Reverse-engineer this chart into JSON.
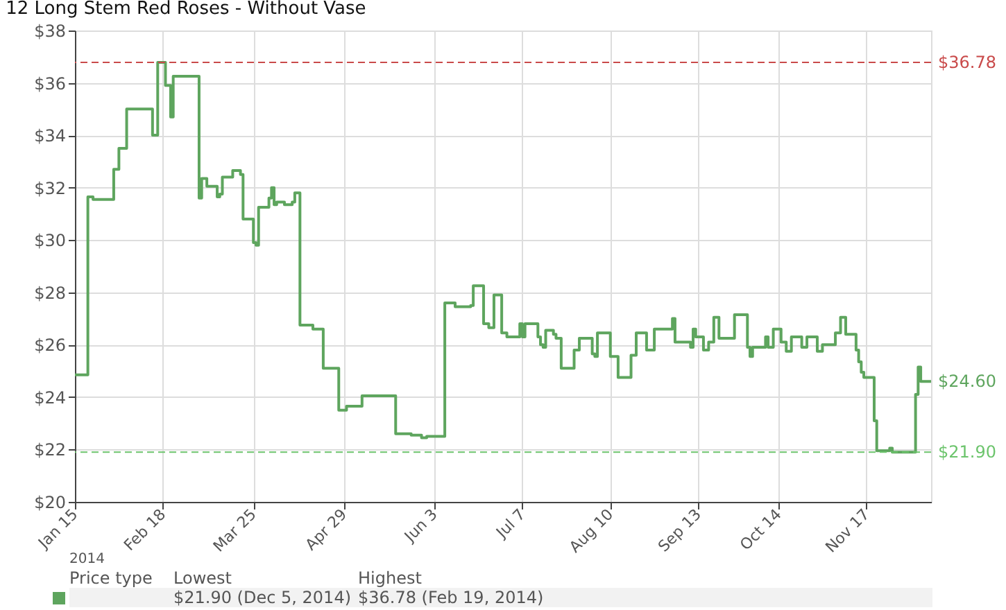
{
  "chart_data": {
    "type": "step",
    "title": "12 Long Stem Red Roses - Without Vase",
    "x": [
      "2014-01-15",
      "2014-01-20",
      "2014-01-22",
      "2014-01-30",
      "2014-02-01",
      "2014-02-04",
      "2014-02-14",
      "2014-02-16",
      "2014-02-19",
      "2014-02-21",
      "2014-02-22",
      "2014-03-04",
      "2014-03-05",
      "2014-03-07",
      "2014-03-11",
      "2014-03-12",
      "2014-03-13",
      "2014-03-17",
      "2014-03-20",
      "2014-03-21",
      "2014-03-25",
      "2014-03-26",
      "2014-03-27",
      "2014-03-31",
      "2014-04-01",
      "2014-04-02",
      "2014-04-03",
      "2014-04-06",
      "2014-04-09",
      "2014-04-10",
      "2014-04-12",
      "2014-04-17",
      "2014-04-21",
      "2014-04-27",
      "2014-04-30",
      "2014-05-06",
      "2014-05-19",
      "2014-05-25",
      "2014-05-29",
      "2014-05-31",
      "2014-06-07",
      "2014-06-11",
      "2014-06-17",
      "2014-06-18",
      "2014-06-22",
      "2014-06-24",
      "2014-06-26",
      "2014-06-29",
      "2014-07-01",
      "2014-07-06",
      "2014-07-07",
      "2014-07-08",
      "2014-07-13",
      "2014-07-14",
      "2014-07-15",
      "2014-07-16",
      "2014-07-19",
      "2014-07-20",
      "2014-07-22",
      "2014-07-27",
      "2014-07-29",
      "2014-08-03",
      "2014-08-04",
      "2014-08-05",
      "2014-08-10",
      "2014-08-13",
      "2014-08-18",
      "2014-08-20",
      "2014-08-24",
      "2014-08-27",
      "2014-09-03",
      "2014-09-04",
      "2014-09-10",
      "2014-09-11",
      "2014-09-12",
      "2014-09-15",
      "2014-09-17",
      "2014-09-19",
      "2014-09-21",
      "2014-09-27",
      "2014-10-02",
      "2014-10-03",
      "2014-10-04",
      "2014-10-09",
      "2014-10-10",
      "2014-10-12",
      "2014-10-15",
      "2014-10-17",
      "2014-10-19",
      "2014-10-23",
      "2014-10-25",
      "2014-10-29",
      "2014-10-31",
      "2014-11-05",
      "2014-11-07",
      "2014-11-09",
      "2014-11-13",
      "2014-11-14",
      "2014-11-15",
      "2014-11-16",
      "2014-11-20",
      "2014-11-21",
      "2014-11-26",
      "2014-11-27",
      "2014-12-06",
      "2014-12-07",
      "2014-12-08",
      "2014-12-12"
    ],
    "series": [
      {
        "color": "#5ea55e",
        "values": [
          24.85,
          31.65,
          31.55,
          32.7,
          33.5,
          35.0,
          34.0,
          36.78,
          35.9,
          34.7,
          36.25,
          31.6,
          32.35,
          32.05,
          31.65,
          31.75,
          32.4,
          32.65,
          32.5,
          30.8,
          29.9,
          29.8,
          31.25,
          31.6,
          32.0,
          31.35,
          31.45,
          31.35,
          31.45,
          31.8,
          26.75,
          26.6,
          25.1,
          23.5,
          23.65,
          24.05,
          22.6,
          22.55,
          22.45,
          22.5,
          27.6,
          27.45,
          27.5,
          28.25,
          26.8,
          26.65,
          27.9,
          26.45,
          26.3,
          26.8,
          26.3,
          26.8,
          26.3,
          26.0,
          25.9,
          26.55,
          26.4,
          26.25,
          25.1,
          25.8,
          26.25,
          25.65,
          25.55,
          26.45,
          25.55,
          24.75,
          25.6,
          26.45,
          25.8,
          26.6,
          27.0,
          26.1,
          25.9,
          26.6,
          26.3,
          25.8,
          26.1,
          27.05,
          26.25,
          27.15,
          25.9,
          25.55,
          25.9,
          26.3,
          25.9,
          26.6,
          26.1,
          25.75,
          26.3,
          25.9,
          26.3,
          25.75,
          26.0,
          26.45,
          27.05,
          26.4,
          25.8,
          25.35,
          24.95,
          24.75,
          23.1,
          21.95,
          22.05,
          21.9,
          24.1,
          25.15,
          24.6,
          24.6
        ]
      }
    ],
    "xlim": [
      "2014-01-15",
      "2014-12-12"
    ],
    "xticks": [
      {
        "value": "2014-01-15",
        "label": "Jan 15"
      },
      {
        "value": "2014-02-18",
        "label": "Feb 18"
      },
      {
        "value": "2014-03-25",
        "label": "Mar 25"
      },
      {
        "value": "2014-04-29",
        "label": "Apr 29"
      },
      {
        "value": "2014-06-03",
        "label": "Jun 3"
      },
      {
        "value": "2014-07-07",
        "label": "Jul 7"
      },
      {
        "value": "2014-08-10",
        "label": "Aug 10"
      },
      {
        "value": "2014-09-13",
        "label": "Sep 13"
      },
      {
        "value": "2014-10-14",
        "label": "Oct 14"
      },
      {
        "value": "2014-11-17",
        "label": "Nov 17"
      }
    ],
    "ylim": [
      20,
      38
    ],
    "yticks": [
      {
        "value": 20,
        "label": "$20"
      },
      {
        "value": 22,
        "label": "$22"
      },
      {
        "value": 24,
        "label": "$24"
      },
      {
        "value": 26,
        "label": "$26"
      },
      {
        "value": 28,
        "label": "$28"
      },
      {
        "value": 30,
        "label": "$30"
      },
      {
        "value": 32,
        "label": "$32"
      },
      {
        "value": 34,
        "label": "$34"
      },
      {
        "value": 36,
        "label": "$36"
      },
      {
        "value": 38,
        "label": "$38"
      }
    ],
    "grid": true,
    "ref_lines": [
      {
        "axis": "y",
        "value": 36.78,
        "label": "$36.78",
        "color": "#c94a4a",
        "line_style": "dashed"
      },
      {
        "axis": "y",
        "value": 21.9,
        "label": "$21.90",
        "color": "#6cc46c",
        "line_style": "dashed"
      }
    ],
    "annotations": [
      {
        "text": "$24.60",
        "x": "2014-12-12",
        "y": 24.6
      },
      "2014",
      "Price type",
      "Lowest",
      "Highest",
      "$21.90 (Dec 5, 2014)",
      "$36.78 (Feb 19, 2014)"
    ]
  }
}
